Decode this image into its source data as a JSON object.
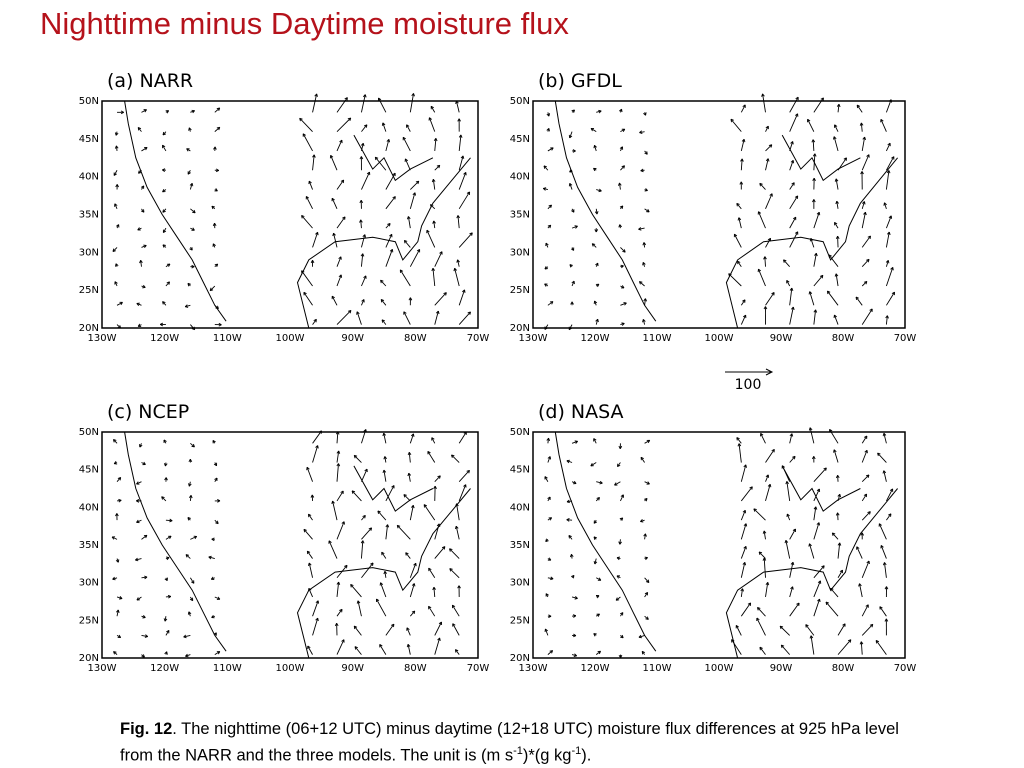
{
  "header": {
    "title": "Nighttime minus Daytime moisture flux"
  },
  "panels": [
    {
      "label": "(a)  NARR"
    },
    {
      "label": "(b)  GFDL"
    },
    {
      "label": "(c)  NCEP"
    },
    {
      "label": "(d)  NASA"
    }
  ],
  "lat_labels": [
    "50N",
    "45N",
    "40N",
    "35N",
    "30N",
    "25N",
    "20N"
  ],
  "lon_labels": [
    "130W",
    "120W",
    "110W",
    "100W",
    "90W",
    "80W",
    "70W"
  ],
  "reference_vector": "100",
  "caption": {
    "label": "Fig. 12",
    "parts": [
      ". The nighttime (06+12 UTC) minus daytime (12+18 UTC) moisture flux differences at 925 hPa level from the NARR and the three models. The unit is (m s",
      "-1",
      ")*(g kg",
      "-1",
      ")."
    ]
  }
}
